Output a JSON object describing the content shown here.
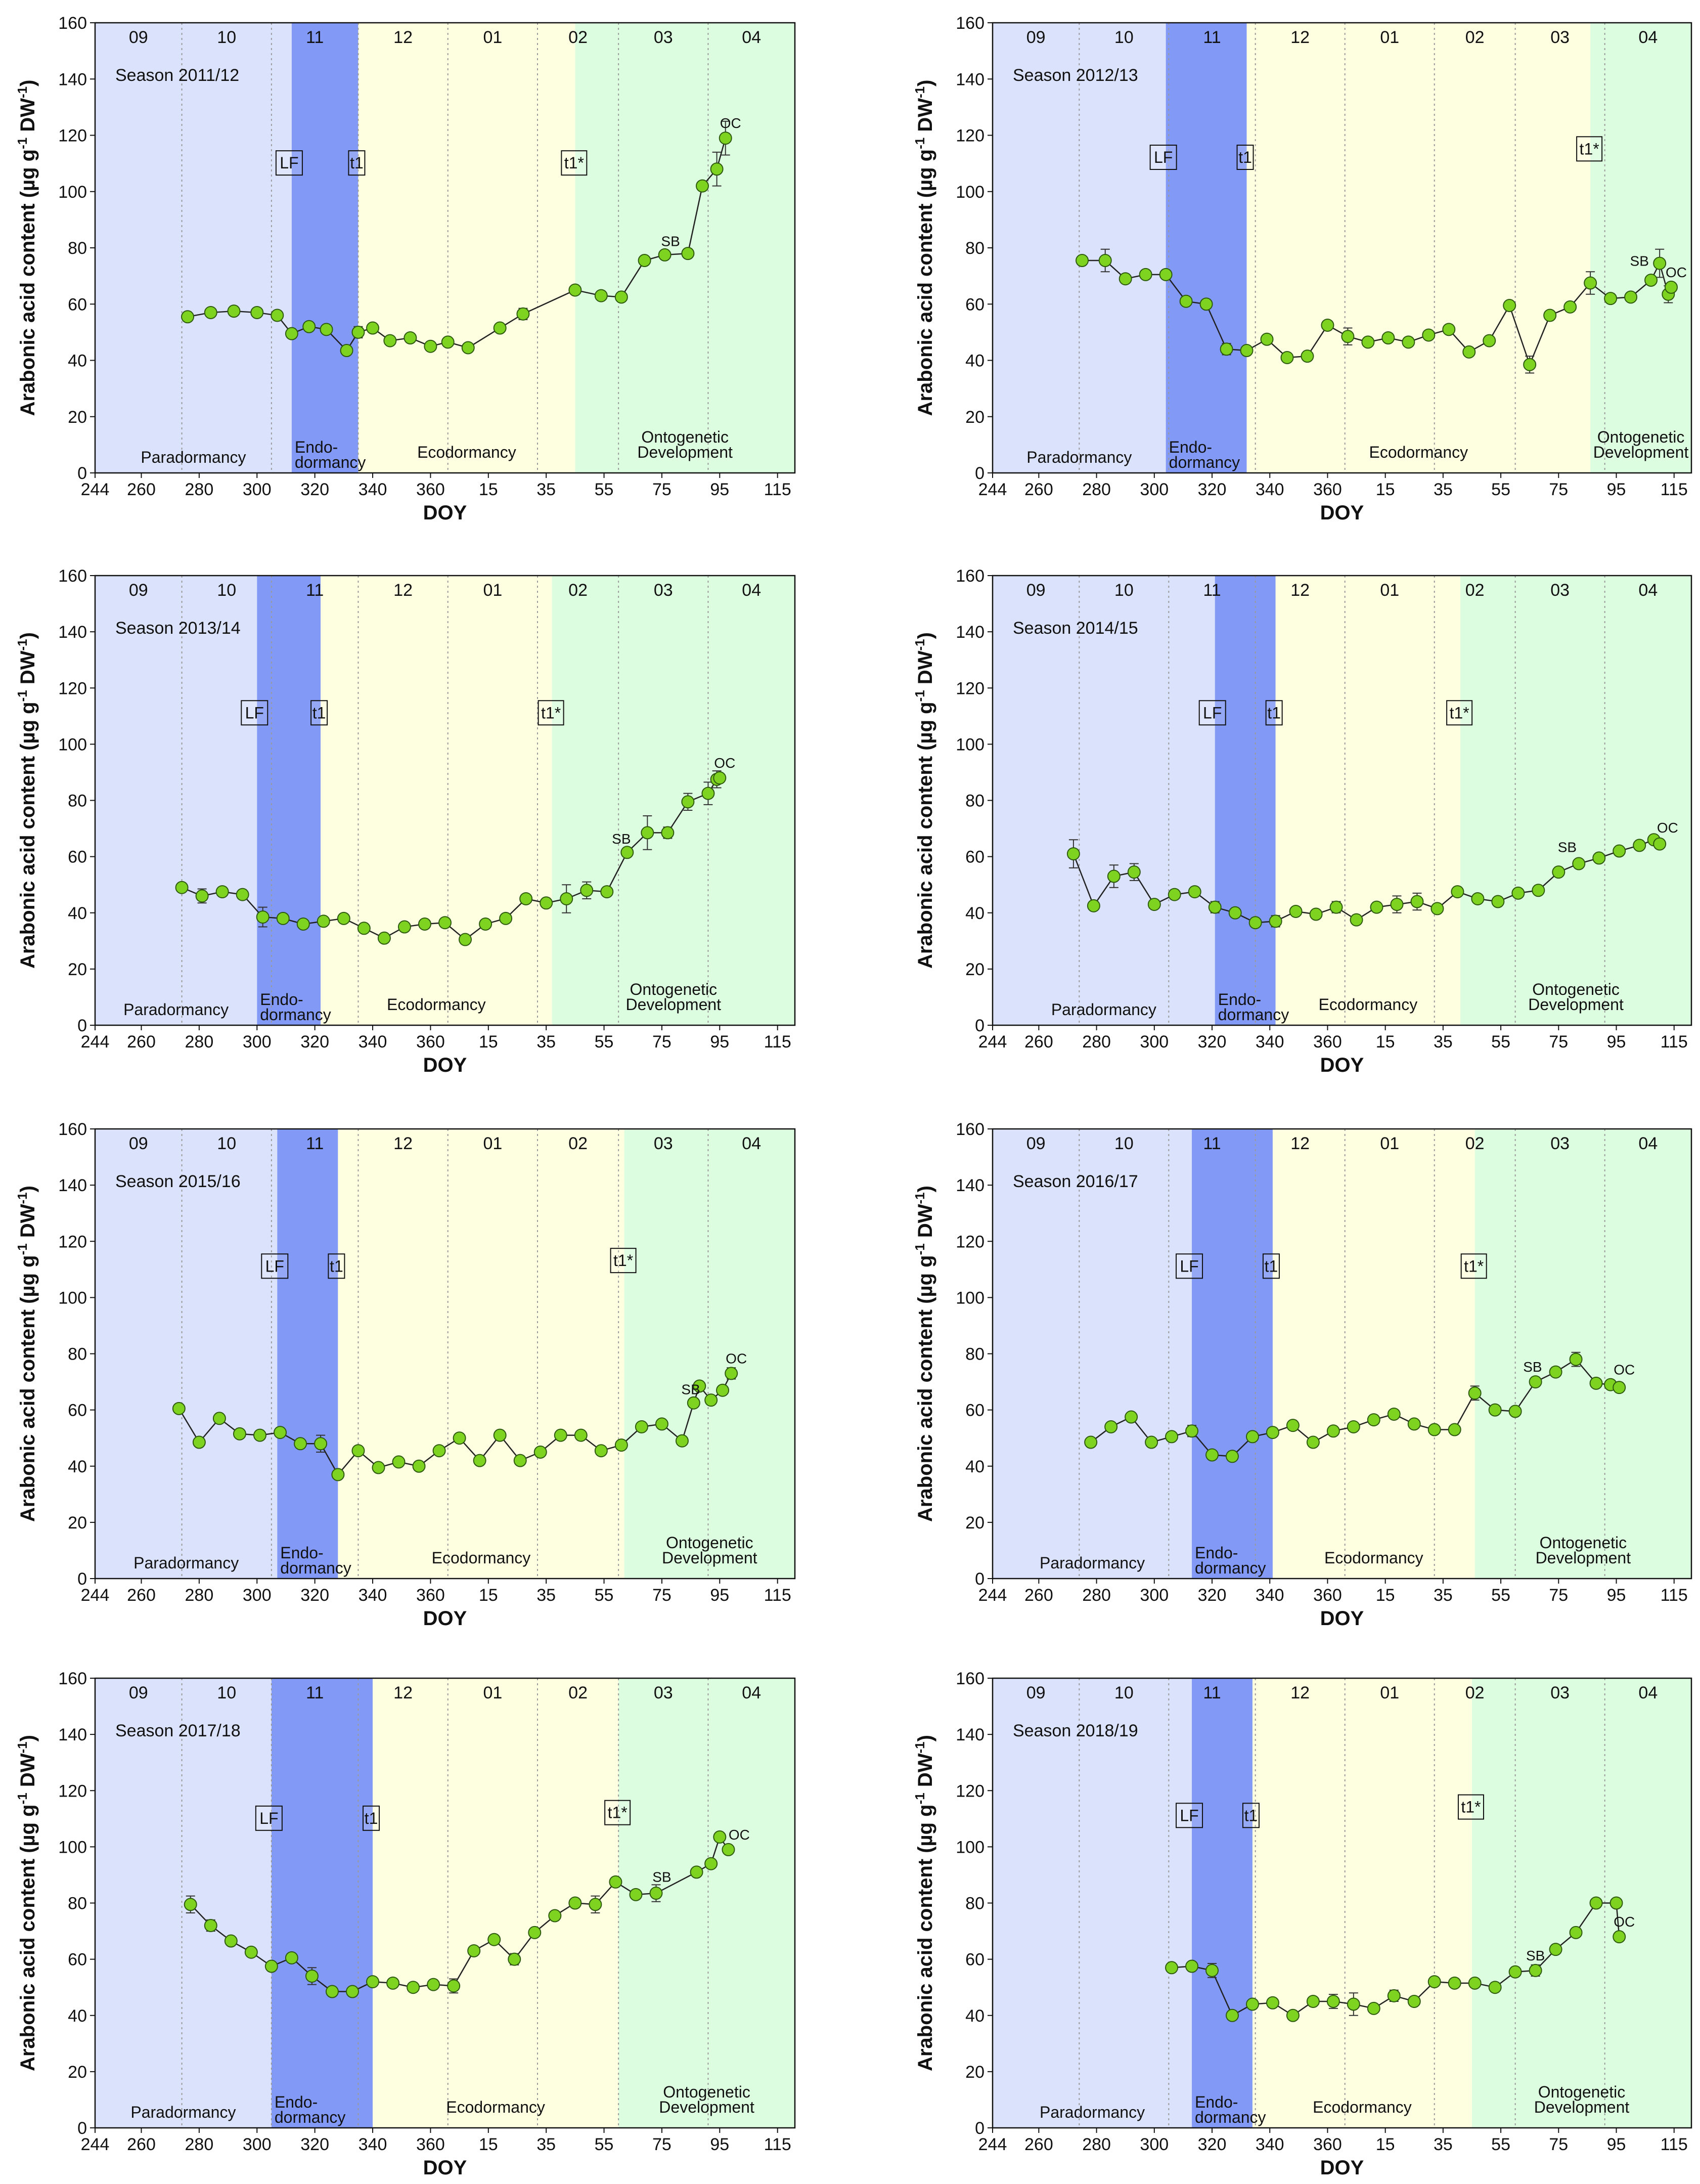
{
  "chart_data": {
    "type": "line",
    "ylabel": "Arabonic acid content (µg g-1 DW-1)",
    "xlabel": "DOY",
    "ylim": [
      0,
      160
    ],
    "yticks": [
      0,
      20,
      40,
      60,
      80,
      100,
      120,
      140,
      160
    ],
    "xticks": [
      "244",
      "260",
      "280",
      "300",
      "320",
      "340",
      "360",
      "15",
      "35",
      "55",
      "75",
      "95",
      "115"
    ],
    "month_labels": [
      "09",
      "10",
      "11",
      "12",
      "01",
      "02",
      "03",
      "04"
    ],
    "month_boundaries_doy": [
      244,
      274,
      305,
      335,
      366,
      397,
      425,
      456,
      486
    ],
    "phase_labels": {
      "paradormancy": "Paradormancy",
      "endo_line1": "Endo-",
      "endo_line2": "dormancy",
      "ecodormancy": "Ecodormancy",
      "onto_line1": "Ontogenetic",
      "onto_line2": "Development"
    },
    "marker_labels": {
      "lf": "LF",
      "t1": "t1",
      "t1s": "t1*",
      "sb": "SB",
      "oc": "OC"
    },
    "colors": {
      "paradormancy": "#dbe2fb",
      "endodormancy": "#8299f5",
      "ecodormancy": "#fefee0",
      "ontogenetic": "#dcfddf",
      "marker_fill": "#7ed321",
      "line": "#222222"
    },
    "panels": [
      {
        "title": "Season 2011/12",
        "phases": {
          "lf": 312,
          "t1": 335,
          "t1s": 410,
          "end": 486
        },
        "labels": {
          "t1_y": 110,
          "t1s_y": 110,
          "lf_y": 110
        },
        "sb": {
          "x": 443,
          "y": 77
        },
        "oc": {
          "x": 462,
          "y": 119
        },
        "x": [
          276,
          284,
          292,
          300,
          307,
          312,
          318,
          324,
          331,
          335,
          340,
          346,
          353,
          360,
          366,
          373,
          384,
          392,
          410,
          419,
          426,
          434,
          441,
          449,
          454,
          459,
          462
        ],
        "y": [
          55.5,
          57,
          57.5,
          57,
          56,
          49.5,
          52,
          51,
          43.5,
          50,
          51.5,
          47,
          48,
          45,
          46.5,
          44.5,
          51.5,
          56.5,
          65,
          63,
          62.5,
          75.5,
          77.5,
          78,
          102,
          108,
          119
        ],
        "err": [
          0,
          0,
          0,
          0,
          0,
          0,
          0,
          0,
          0,
          2,
          0,
          0,
          0,
          0,
          0,
          0,
          0,
          2,
          0,
          0,
          0,
          0,
          0,
          0,
          0,
          6,
          6
        ]
      },
      {
        "title": "Season 2012/13",
        "phases": {
          "lf": 304,
          "t1": 332,
          "t1s": 451,
          "end": 486
        },
        "labels": {
          "t1_y": 112,
          "t1s_y": 115,
          "lf_y": 112
        },
        "sb": {
          "x": 468,
          "y": 70
        },
        "oc": {
          "x": 479,
          "y": 66
        },
        "x": [
          275,
          283,
          290,
          297,
          304,
          311,
          318,
          325,
          332,
          339,
          346,
          353,
          360,
          367,
          374,
          381,
          388,
          395,
          402,
          409,
          416,
          423,
          430,
          437,
          444,
          451,
          458,
          465,
          472,
          475,
          478,
          479
        ],
        "y": [
          75.5,
          75.5,
          69,
          70.5,
          70.5,
          61,
          60,
          44,
          43.5,
          47.5,
          41,
          41.5,
          52.5,
          48.5,
          46.5,
          48,
          46.5,
          49,
          51,
          43,
          47,
          59.5,
          38.5,
          56,
          59,
          67.5,
          62,
          62.5,
          68.5,
          74.5,
          63.5,
          66
        ],
        "err": [
          0,
          4,
          0,
          1.5,
          1.5,
          0,
          0,
          2,
          1,
          0,
          0,
          0,
          0,
          3,
          0,
          0,
          0,
          0,
          0,
          0,
          0,
          0,
          3,
          0,
          0,
          4,
          0,
          1,
          0,
          5,
          3,
          0
        ]
      },
      {
        "title": "Season 2013/14",
        "phases": {
          "lf": 300,
          "t1": 322,
          "t1s": 402,
          "end": 486
        },
        "labels": {
          "t1_y": 111,
          "t1s_y": 111,
          "lf_y": 111
        },
        "sb": {
          "x": 426,
          "y": 61
        },
        "oc": {
          "x": 460,
          "y": 88
        },
        "x": [
          274,
          281,
          288,
          295,
          302,
          309,
          316,
          323,
          330,
          337,
          344,
          351,
          358,
          365,
          372,
          379,
          386,
          393,
          400,
          407,
          414,
          421,
          428,
          435,
          442,
          449,
          456,
          459,
          460
        ],
        "y": [
          49,
          46,
          47.5,
          46.5,
          38.5,
          38,
          36,
          37,
          38,
          34.5,
          31,
          35,
          36,
          36.5,
          30.5,
          36,
          38,
          45,
          43.5,
          45,
          48,
          47.5,
          61.5,
          68.5,
          68.5,
          79.5,
          82.5,
          87.5,
          88
        ],
        "err": [
          0,
          2.5,
          1.5,
          0,
          3.5,
          0,
          0,
          0,
          0,
          0,
          0,
          0,
          0,
          0,
          0,
          0,
          0,
          0,
          0,
          5,
          3,
          0,
          0,
          6,
          2,
          3,
          4,
          3,
          0
        ]
      },
      {
        "title": "Season 2014/15",
        "phases": {
          "lf": 321,
          "t1": 342,
          "t1s": 406,
          "end": 486
        },
        "labels": {
          "t1_y": 111,
          "t1s_y": 111,
          "lf_y": 111
        },
        "sb": {
          "x": 443,
          "y": 58
        },
        "oc": {
          "x": 476,
          "y": 65
        },
        "x": [
          272,
          279,
          286,
          293,
          300,
          307,
          314,
          321,
          328,
          335,
          342,
          349,
          356,
          363,
          370,
          377,
          384,
          391,
          398,
          405,
          412,
          419,
          426,
          433,
          440,
          447,
          454,
          461,
          468,
          473,
          475
        ],
        "y": [
          61,
          42.5,
          53,
          54.5,
          43,
          46.5,
          47.5,
          42,
          40,
          36.5,
          37,
          40.5,
          39.5,
          42,
          37.5,
          42,
          43,
          44,
          41.5,
          47.5,
          45,
          44,
          47,
          48,
          54.5,
          57.5,
          59.5,
          62,
          64,
          66,
          64.5
        ],
        "err": [
          5,
          0,
          4,
          3,
          0,
          0,
          0,
          2,
          0,
          0,
          2,
          0,
          0,
          2,
          0,
          0,
          3,
          3,
          0,
          0,
          0,
          0,
          0,
          0,
          0,
          0,
          0,
          0,
          0,
          0,
          0
        ]
      },
      {
        "title": "Season 2015/16",
        "phases": {
          "lf": 307,
          "t1": 328,
          "t1s": 427,
          "end": 486
        },
        "labels": {
          "t1_y": 111,
          "t1s_y": 113,
          "lf_y": 111
        },
        "sb": {
          "x": 450,
          "y": 62
        },
        "oc": {
          "x": 464,
          "y": 73
        },
        "x": [
          273,
          280,
          287,
          294,
          301,
          308,
          315,
          322,
          328,
          335,
          342,
          349,
          356,
          363,
          370,
          377,
          384,
          391,
          398,
          405,
          412,
          419,
          426,
          433,
          440,
          447,
          451,
          453,
          457,
          461,
          464
        ],
        "y": [
          60.5,
          48.5,
          57,
          51.5,
          51,
          52,
          48,
          48,
          37,
          45.5,
          39.5,
          41.5,
          40,
          45.5,
          50,
          42,
          51,
          42,
          45,
          51,
          51,
          45.5,
          47.5,
          54,
          55,
          49,
          62.5,
          68.5,
          63.5,
          67,
          73
        ],
        "err": [
          0,
          0,
          0,
          0,
          0,
          0,
          0,
          3,
          0,
          0,
          0,
          0,
          0,
          0,
          0,
          0,
          0,
          0,
          0,
          0,
          0,
          0,
          0,
          0,
          0,
          0,
          0,
          0,
          0,
          0,
          2
        ]
      },
      {
        "title": "Season 2016/17",
        "phases": {
          "lf": 313,
          "t1": 341,
          "t1s": 411,
          "end": 486
        },
        "labels": {
          "t1_y": 111,
          "t1s_y": 111,
          "lf_y": 111
        },
        "sb": {
          "x": 431,
          "y": 70
        },
        "oc": {
          "x": 461,
          "y": 69
        },
        "x": [
          278,
          285,
          292,
          299,
          306,
          313,
          320,
          327,
          334,
          341,
          348,
          355,
          362,
          369,
          376,
          383,
          390,
          397,
          404,
          411,
          418,
          425,
          432,
          439,
          446,
          453,
          458,
          461
        ],
        "y": [
          48.5,
          54,
          57.5,
          48.5,
          50.5,
          52.5,
          44,
          43.5,
          50.5,
          52,
          54.5,
          48.5,
          52.5,
          54,
          56.5,
          58.5,
          55,
          53,
          53,
          66,
          60,
          59.5,
          70,
          73.5,
          78,
          69.5,
          69,
          68
        ],
        "err": [
          0,
          0,
          0,
          0,
          0,
          2,
          0,
          0,
          0,
          0,
          0,
          0,
          0,
          0,
          0,
          0,
          0,
          0,
          0,
          2.5,
          0,
          0,
          0,
          0,
          2.5,
          0,
          0,
          0
        ]
      },
      {
        "title": "Season 2017/18",
        "phases": {
          "lf": 305,
          "t1": 340,
          "t1s": 425,
          "end": 486
        },
        "labels": {
          "t1_y": 110,
          "t1s_y": 112,
          "lf_y": 110
        },
        "sb": {
          "x": 440,
          "y": 84
        },
        "oc": {
          "x": 465,
          "y": 99
        },
        "x": [
          277,
          284,
          291,
          298,
          305,
          312,
          319,
          326,
          333,
          340,
          347,
          354,
          361,
          368,
          375,
          382,
          389,
          396,
          403,
          410,
          417,
          424,
          431,
          438,
          452,
          457,
          460,
          463
        ],
        "y": [
          79.5,
          72,
          66.5,
          62.5,
          57.5,
          60.5,
          54,
          48.5,
          48.5,
          52,
          51.5,
          50,
          51,
          50.5,
          63,
          67,
          60,
          69.5,
          75.5,
          80,
          79.5,
          87.5,
          83,
          83.5,
          91,
          94,
          103.5,
          99
        ],
        "err": [
          3,
          2,
          0,
          0,
          0,
          0,
          3,
          0,
          0,
          0,
          0,
          0,
          0,
          2.5,
          0,
          0,
          2,
          0,
          0,
          0,
          3,
          0,
          0,
          3,
          0,
          0,
          0,
          0
        ]
      },
      {
        "title": "Season 2018/19",
        "phases": {
          "lf": 313,
          "t1": 334,
          "t1s": 410,
          "end": 486
        },
        "labels": {
          "t1_y": 111,
          "t1s_y": 114,
          "lf_y": 111
        },
        "sb": {
          "x": 432,
          "y": 56
        },
        "oc": {
          "x": 461,
          "y": 68
        },
        "x": [
          306,
          313,
          320,
          327,
          334,
          341,
          348,
          355,
          362,
          369,
          376,
          383,
          390,
          397,
          404,
          411,
          418,
          425,
          432,
          439,
          446,
          453,
          460,
          461
        ],
        "y": [
          57,
          57.5,
          56,
          40,
          44,
          44.5,
          40,
          45,
          45,
          44,
          42.5,
          47,
          45,
          52,
          51.5,
          51.5,
          50,
          55.5,
          56,
          63.5,
          69.5,
          80,
          80,
          68
        ],
        "err": [
          0,
          0,
          2.5,
          0,
          0,
          0,
          0,
          0,
          2.5,
          4,
          0,
          2,
          0,
          0,
          0,
          0,
          0,
          0,
          2,
          0,
          0,
          0,
          0,
          0
        ]
      }
    ]
  }
}
